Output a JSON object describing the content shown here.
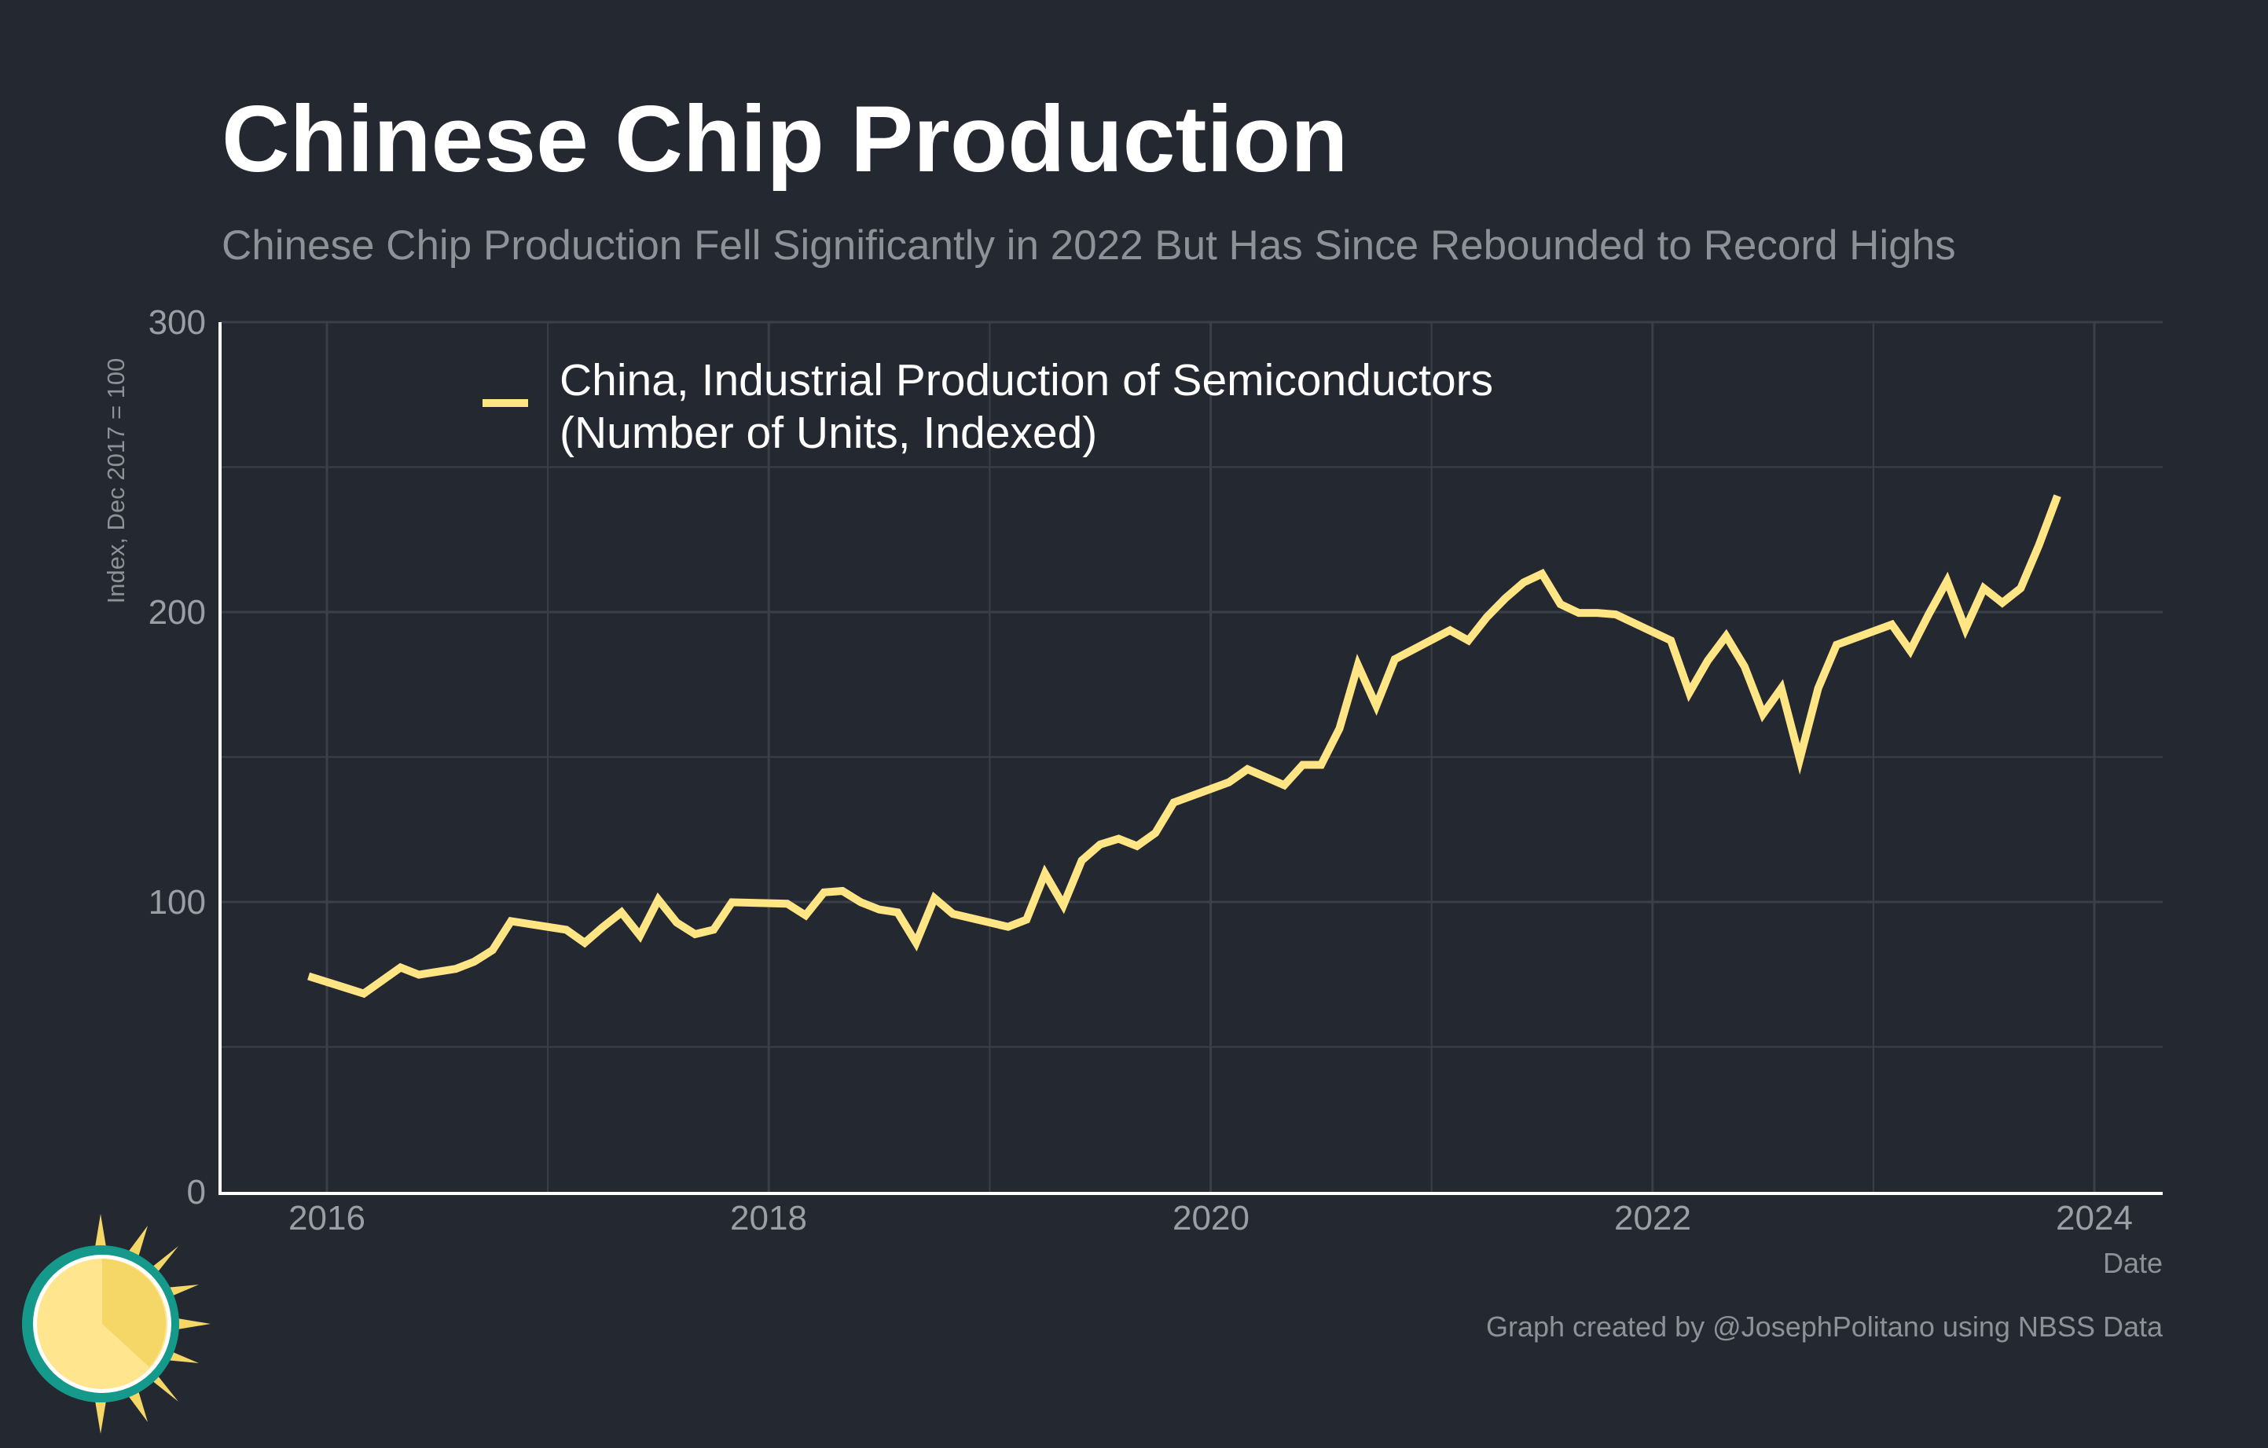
{
  "chart_data": {
    "type": "line",
    "title": "Chinese Chip Production",
    "subtitle": "Chinese Chip Production Fell Significantly in 2022 But Has Since Rebounded to Record Highs",
    "xlabel": "Date",
    "ylabel": "Index, Dec 2017 = 100",
    "ylim": [
      0,
      300
    ],
    "xlim": [
      "2015-07",
      "2024-06"
    ],
    "y_ticks": [
      "0",
      "100",
      "200",
      "300"
    ],
    "x_ticks": [
      "2016",
      "2018",
      "2020",
      "2022",
      "2024"
    ],
    "grid": true,
    "legend_position": "top-left",
    "caption": "Graph created by @JosephPolitano using NBSS Data",
    "colors": {
      "background": "#242830",
      "grid": "#3b3f47",
      "series": "#ffe584",
      "text": "#ffffff"
    },
    "series": [
      {
        "name": "China, Industrial Production of Semiconductors",
        "name_line2": "(Number of Units, Indexed)",
        "x": [
          "2015-12",
          "2016-02",
          "2016-03",
          "2016-05",
          "2016-06",
          "2016-08",
          "2016-09",
          "2016-10",
          "2016-11",
          "2017-02",
          "2017-03",
          "2017-04",
          "2017-05",
          "2017-06",
          "2017-07",
          "2017-08",
          "2017-09",
          "2017-10",
          "2017-11",
          "2018-02",
          "2018-03",
          "2018-04",
          "2018-05",
          "2018-06",
          "2018-07",
          "2018-08",
          "2018-09",
          "2018-10",
          "2018-11",
          "2019-02",
          "2019-03",
          "2019-04",
          "2019-05",
          "2019-06",
          "2019-07",
          "2019-08",
          "2019-09",
          "2019-10",
          "2019-11",
          "2020-02",
          "2020-03",
          "2020-05",
          "2020-06",
          "2020-07",
          "2020-08",
          "2020-09",
          "2020-10",
          "2020-11",
          "2021-02",
          "2021-03",
          "2021-04",
          "2021-05",
          "2021-06",
          "2021-07",
          "2021-08",
          "2021-09",
          "2021-10",
          "2021-11",
          "2022-02",
          "2022-03",
          "2022-04",
          "2022-05",
          "2022-06",
          "2022-07",
          "2022-08",
          "2022-09",
          "2022-10",
          "2022-11",
          "2023-02",
          "2023-03",
          "2023-04",
          "2023-05",
          "2023-06",
          "2023-07",
          "2023-08",
          "2023-09",
          "2023-10",
          "2023-11"
        ],
        "values": [
          74.4,
          70.4,
          68.4,
          77.4,
          74.9,
          76.9,
          79.4,
          83.4,
          93.4,
          90.4,
          85.9,
          91.4,
          96.4,
          88.4,
          100.8,
          92.9,
          88.9,
          90.4,
          99.9,
          99.4,
          95.4,
          103.3,
          103.8,
          99.9,
          97.4,
          96.4,
          85.9,
          101.3,
          95.9,
          91.4,
          93.9,
          109.8,
          98.9,
          114.3,
          119.8,
          121.8,
          119.3,
          123.8,
          134.3,
          141.3,
          145.8,
          140.3,
          147.3,
          147.3,
          159.8,
          181.7,
          167.7,
          183.7,
          193.7,
          190.2,
          198.2,
          204.7,
          210.2,
          213.2,
          202.7,
          199.7,
          199.7,
          199.2,
          190.2,
          172.2,
          183.2,
          191.7,
          181.2,
          164.8,
          173.7,
          149.3,
          173.7,
          188.7,
          195.7,
          186.7,
          199.2,
          210.7,
          194.2,
          208.2,
          203.2,
          208.2,
          223.2,
          240.1
        ]
      }
    ]
  }
}
